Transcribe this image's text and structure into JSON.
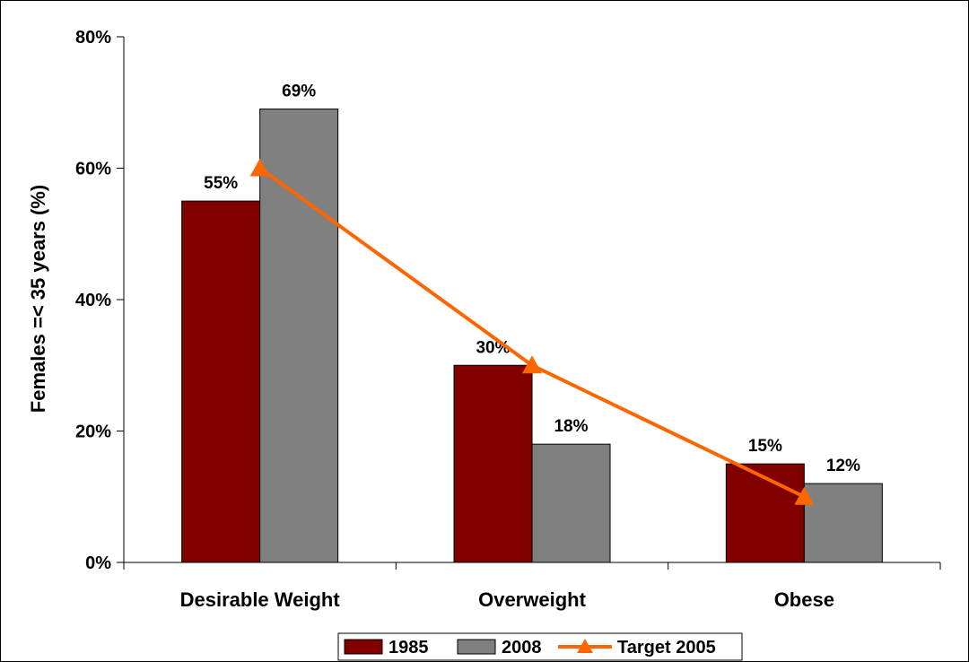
{
  "chart_data": {
    "type": "bar",
    "categories": [
      "Desirable Weight",
      "Overweight",
      "Obese"
    ],
    "series": [
      {
        "name": "1985",
        "kind": "bar",
        "color": "#800000",
        "values": [
          55,
          30,
          15
        ],
        "labels": [
          "55%",
          "30%",
          "15%"
        ]
      },
      {
        "name": "2008",
        "kind": "bar",
        "color": "#808080",
        "values": [
          69,
          18,
          12
        ],
        "labels": [
          "69%",
          "18%",
          "12%"
        ]
      },
      {
        "name": "Target 2005",
        "kind": "line",
        "marker": "triangle",
        "color": "#ff6600",
        "values": [
          60,
          30,
          10
        ]
      }
    ],
    "ylabel": "Females =< 35 years (%)",
    "ylim": [
      0,
      80
    ],
    "yticks": [
      0,
      20,
      40,
      60,
      80
    ],
    "ytick_labels": [
      "0%",
      "20%",
      "40%",
      "60%",
      "80%"
    ],
    "grid": false,
    "legend_position": "bottom"
  }
}
